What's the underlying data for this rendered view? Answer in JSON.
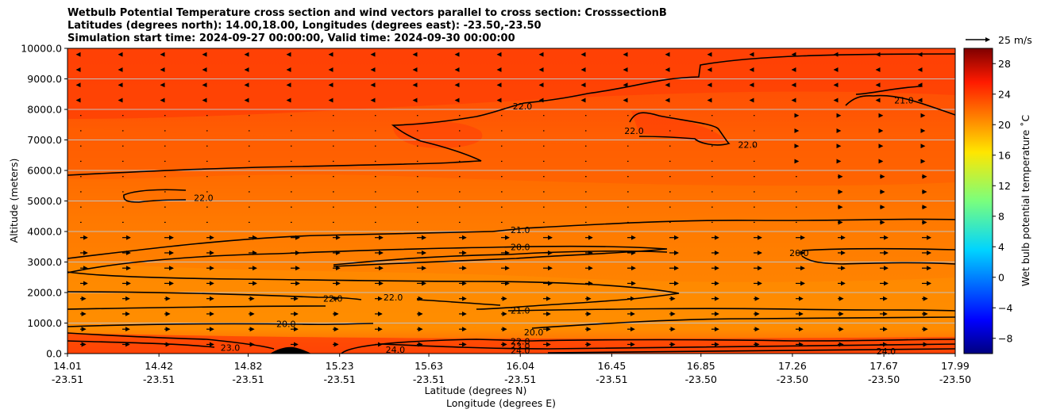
{
  "chart_data": {
    "type": "heatmap",
    "title": [
      "Wetbulb Potential Temperature cross section and wind vectors parallel to cross section: CrosssectionB",
      "Latitudes (degrees north): 14.00,18.00, Longitudes (degrees east): -23.50,-23.50",
      "Simulation start time: 2024-09-27 00:00:00, Valid time: 2024-09-30 00:00:00"
    ],
    "xlabel": "Latitude (degrees N)",
    "xlabel2": "Longitude (degrees E)",
    "ylabel": "Altitude (meters)",
    "colorbar_label": "Wet bulb potential temperature $^\\circ$C",
    "colorbar_label_display": "Wet bulb potential temperature ˚C",
    "vector_key": "25 m/s",
    "grid": true,
    "x_ticks": [
      {
        "lat": "14.01",
        "lon": "-23.51"
      },
      {
        "lat": "14.42",
        "lon": "-23.51"
      },
      {
        "lat": "14.82",
        "lon": "-23.51"
      },
      {
        "lat": "15.23",
        "lon": "-23.51"
      },
      {
        "lat": "15.63",
        "lon": "-23.51"
      },
      {
        "lat": "16.04",
        "lon": "-23.51"
      },
      {
        "lat": "16.45",
        "lon": "-23.51"
      },
      {
        "lat": "16.85",
        "lon": "-23.50"
      },
      {
        "lat": "17.26",
        "lon": "-23.50"
      },
      {
        "lat": "17.67",
        "lon": "-23.50"
      },
      {
        "lat": "17.99",
        "lon": "-23.50"
      }
    ],
    "x_tick_positions": [
      14.01,
      14.42,
      14.82,
      15.23,
      15.63,
      16.04,
      16.45,
      16.85,
      17.26,
      17.67,
      17.99
    ],
    "xlim": [
      14.01,
      17.99
    ],
    "y_ticks": [
      "0.0",
      "1000.0",
      "2000.0",
      "3000.0",
      "4000.0",
      "5000.0",
      "6000.0",
      "7000.0",
      "8000.0",
      "9000.0",
      "10000.0"
    ],
    "ylim": [
      0,
      10000
    ],
    "colorbar_ticks": [
      -8,
      -4,
      0,
      4,
      8,
      12,
      16,
      20,
      24,
      28
    ],
    "colorbar_range": [
      -10,
      30
    ],
    "contour_labels": [
      {
        "text": "22.0",
        "lat": 16.05,
        "alt": 8100
      },
      {
        "text": "21.0",
        "lat": 17.76,
        "alt": 8300
      },
      {
        "text": "22.0",
        "lat": 16.55,
        "alt": 7300
      },
      {
        "text": "22.0",
        "lat": 17.06,
        "alt": 6850
      },
      {
        "text": "22.0",
        "lat": 14.62,
        "alt": 5100
      },
      {
        "text": "21.0",
        "lat": 16.04,
        "alt": 4050
      },
      {
        "text": "20.0",
        "lat": 16.04,
        "alt": 3500
      },
      {
        "text": "20.0",
        "lat": 17.29,
        "alt": 3300
      },
      {
        "text": "22.0",
        "lat": 15.2,
        "alt": 1800
      },
      {
        "text": "22.0",
        "lat": 15.47,
        "alt": 1850
      },
      {
        "text": "21.0",
        "lat": 16.04,
        "alt": 1420
      },
      {
        "text": "20.0",
        "lat": 14.99,
        "alt": 980
      },
      {
        "text": "20.0",
        "lat": 16.1,
        "alt": 700
      },
      {
        "text": "23.0",
        "lat": 14.74,
        "alt": 200
      },
      {
        "text": "24.0",
        "lat": 15.48,
        "alt": 130
      },
      {
        "text": "22.0",
        "lat": 16.04,
        "alt": 400
      },
      {
        "text": "23.0",
        "lat": 16.04,
        "alt": 250
      },
      {
        "text": "24.0",
        "lat": 16.04,
        "alt": 100
      },
      {
        "text": "24.0",
        "lat": 17.68,
        "alt": 80
      }
    ],
    "colors": {
      "field_dark": "#ff4a05",
      "field_mid": "#ff6a00",
      "field_light": "#ff8a00",
      "contour": "#000000",
      "grid": "#c0c0c0"
    }
  }
}
